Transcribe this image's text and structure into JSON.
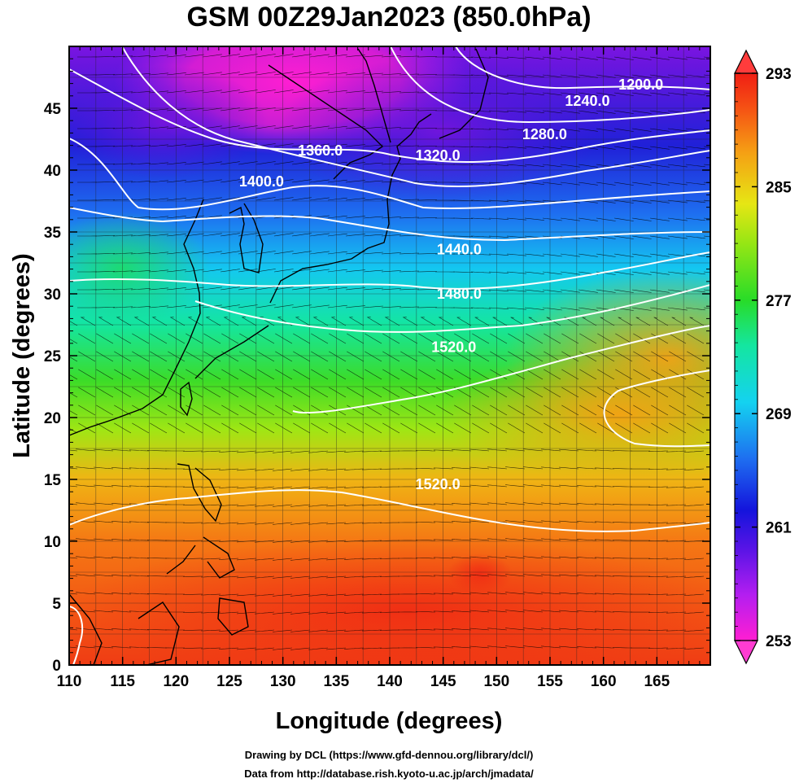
{
  "title": "GSM 00Z29Jan2023 (850.0hPa)",
  "xlabel": "Longitude (degrees)",
  "ylabel": "Latitude  (degrees)",
  "credits": {
    "line1": "Drawing by DCL (https://www.gfd-dennou.org/library/dcl/)",
    "line2": "Data from http://database.rish.kyoto-u.ac.jp/arch/jmadata/"
  },
  "chart_data": {
    "type": "heatmap",
    "variable": "temperature",
    "xlim": [
      110,
      170
    ],
    "ylim": [
      0,
      50
    ],
    "x_ticks": [
      110,
      115,
      120,
      125,
      130,
      135,
      140,
      145,
      150,
      155,
      160,
      165
    ],
    "x_tick_labels": [
      "110",
      "115",
      "120",
      "125",
      "130",
      "135",
      "140",
      "145",
      "150",
      "155",
      "160",
      "165"
    ],
    "y_ticks": [
      0,
      5,
      10,
      15,
      20,
      25,
      30,
      35,
      40,
      45
    ],
    "y_tick_labels": [
      "0",
      "5",
      "10",
      "15",
      "20",
      "25",
      "30",
      "35",
      "40",
      "45"
    ],
    "grid": true,
    "colorbar": {
      "min": 253,
      "max": 293,
      "tick_values": [
        253,
        261,
        269,
        277,
        285,
        293
      ],
      "tick_labels": [
        "253",
        "261",
        "269",
        "277",
        "285",
        "293"
      ]
    },
    "contours": [
      {
        "level": 1200,
        "label": "1200.0",
        "label_lon": 163.5,
        "label_lat": 46.5
      },
      {
        "level": 1240,
        "label": "1240.0",
        "label_lon": 158.5,
        "label_lat": 45.2
      },
      {
        "level": 1280,
        "label": "1280.0",
        "label_lon": 154.5,
        "label_lat": 42.5
      },
      {
        "level": 1320,
        "label": "1320.0",
        "label_lon": 144.5,
        "label_lat": 40.8
      },
      {
        "level": 1360,
        "label": "1360.0",
        "label_lon": 133.5,
        "label_lat": 41.2
      },
      {
        "level": 1400,
        "label": "1400.0",
        "label_lon": 128.0,
        "label_lat": 38.7
      },
      {
        "level": 1440,
        "label": "1440.0",
        "label_lon": 146.5,
        "label_lat": 33.2
      },
      {
        "level": 1480,
        "label": "1480.0",
        "label_lon": 146.5,
        "label_lat": 29.6
      },
      {
        "level": 1520,
        "label": "1520.0",
        "label_lon": 146.0,
        "label_lat": 25.3
      },
      {
        "level": 1520,
        "label": "1520.0",
        "label_lon": 144.5,
        "label_lat": 14.2
      }
    ],
    "colors": {
      "colorbar_min": "#ff3cd2",
      "colorbar_max": "#ff3c3c"
    }
  }
}
